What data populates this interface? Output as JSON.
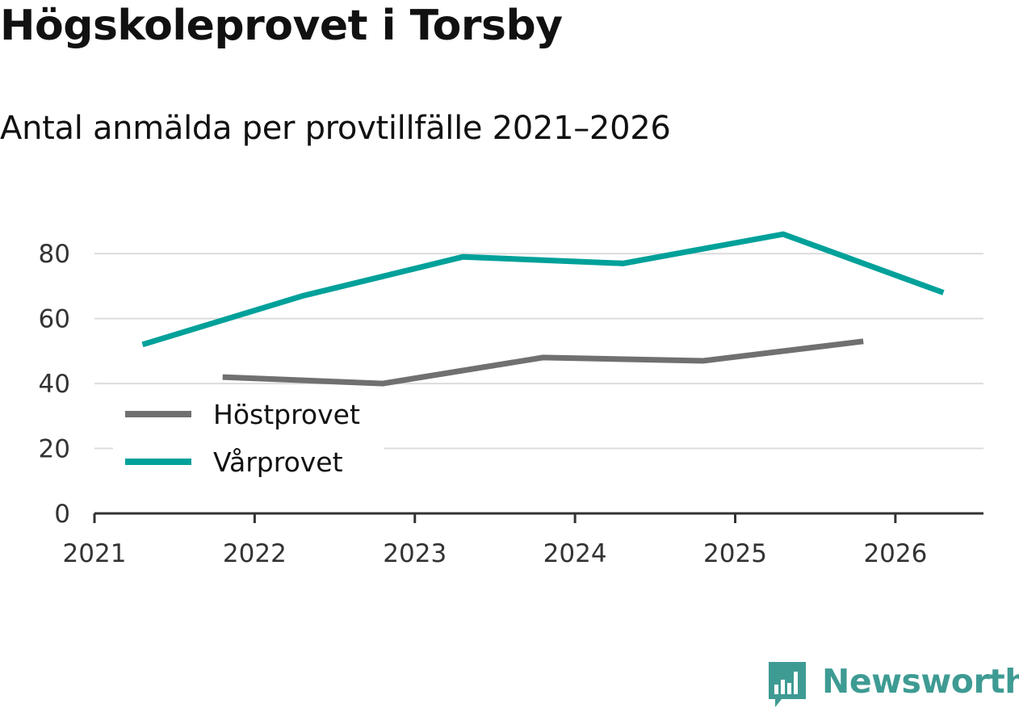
{
  "chart_data": {
    "type": "line",
    "title": "Högskoleprovet i Torsby",
    "subtitle": "Antal anmälda per provtillfälle 2021–2026",
    "xlabel": "",
    "ylabel": "",
    "xlim": [
      2021,
      2026.55
    ],
    "ylim": [
      0,
      90
    ],
    "x_ticks": [
      2021,
      2022,
      2023,
      2024,
      2025,
      2026
    ],
    "y_ticks": [
      0,
      20,
      40,
      60,
      80
    ],
    "grid": true,
    "legend_position": "bottom-left",
    "series": [
      {
        "name": "Höstprovet",
        "color": "#707070",
        "x": [
          2021.8,
          2022.8,
          2023.8,
          2024.8,
          2025.8
        ],
        "values": [
          42,
          40,
          48,
          47,
          53
        ]
      },
      {
        "name": "Vårprovet",
        "color": "#00a19a",
        "x": [
          2021.3,
          2022.3,
          2023.3,
          2024.3,
          2025.3,
          2026.3
        ],
        "values": [
          52,
          67,
          79,
          77,
          86,
          68
        ]
      }
    ]
  },
  "brand": {
    "name": "Newsworthy",
    "color": "#3e9b93",
    "icon": "bar-chart-speech-bubble-icon"
  }
}
